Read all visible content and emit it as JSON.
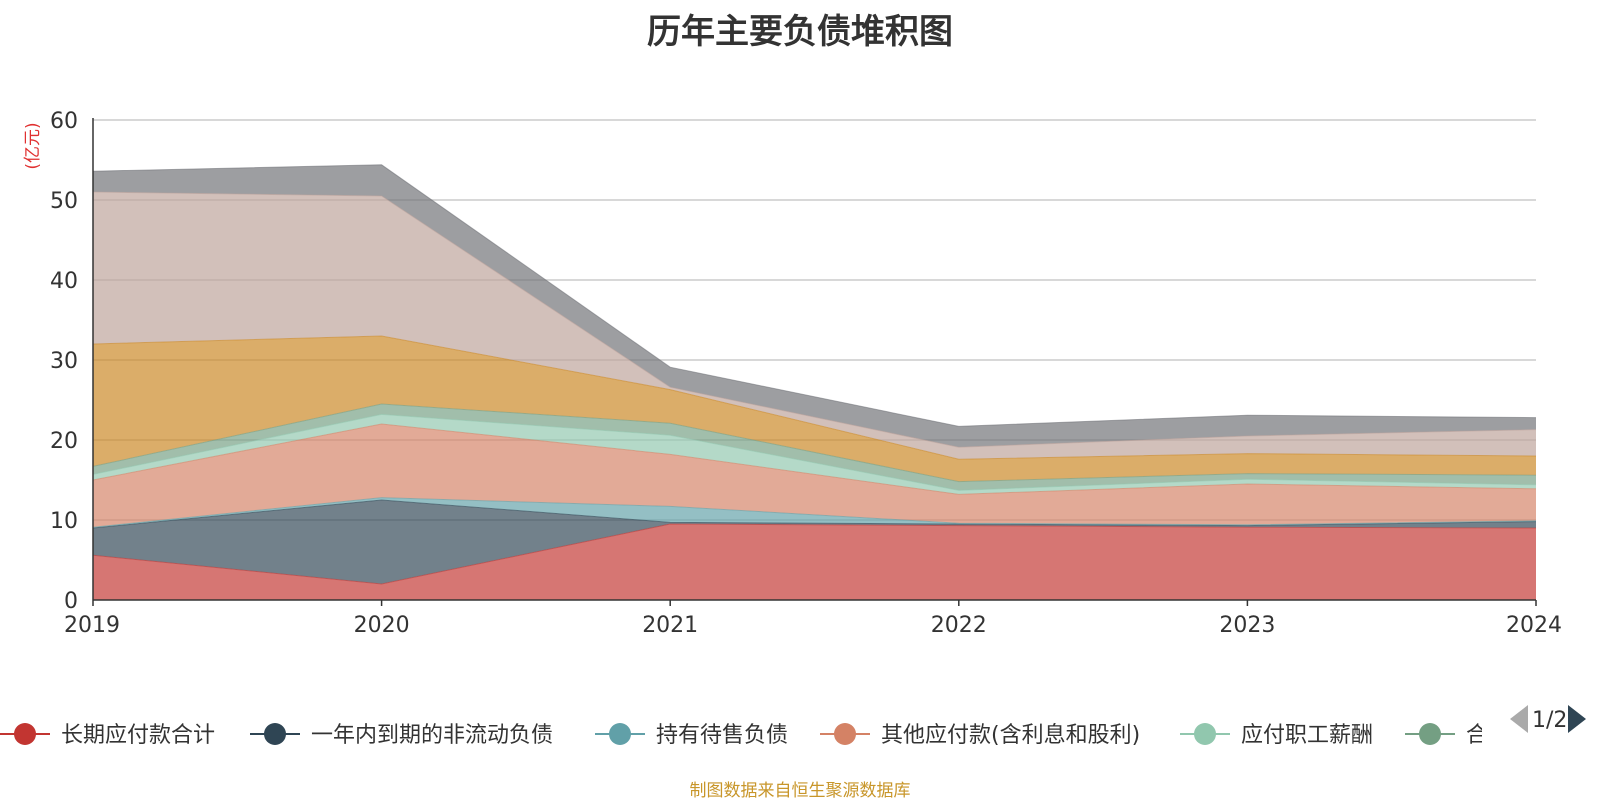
{
  "chart_data": {
    "type": "area",
    "stacked": true,
    "title": "历年主要负债堆积图",
    "y_unit": "(亿元)",
    "xlabel": "",
    "ylabel": "",
    "x": [
      "2019",
      "2020",
      "2021",
      "2022",
      "2023",
      "2024"
    ],
    "ylim": [
      0,
      60
    ],
    "yticks": [
      "0",
      "10",
      "20",
      "30",
      "40",
      "50",
      "60"
    ],
    "grid": true,
    "legend": {
      "position": "bottom",
      "page": "1/2"
    },
    "series": [
      {
        "name": "长期应付款合计",
        "color": "#c23531",
        "values": [
          5.6,
          2.0,
          9.5,
          9.3,
          9.1,
          9.0
        ],
        "legend_visible": true
      },
      {
        "name": "一年内到期的非流动负债",
        "color": "#2f4554",
        "values": [
          3.4,
          10.5,
          0.2,
          0.2,
          0.2,
          0.8
        ],
        "legend_visible": true
      },
      {
        "name": "持有待售负债",
        "color": "#61a0a8",
        "values": [
          0.1,
          0.3,
          2.0,
          0.1,
          0.1,
          0.1
        ],
        "legend_visible": true
      },
      {
        "name": "其他应付款(含利息和股利)",
        "color": "#d48265",
        "values": [
          5.9,
          9.2,
          6.5,
          3.6,
          5.1,
          4.0
        ],
        "legend_visible": true
      },
      {
        "name": "应付职工薪酬",
        "color": "#91c7ae",
        "values": [
          0.7,
          1.2,
          2.4,
          0.5,
          0.6,
          0.5
        ],
        "legend_visible": true
      },
      {
        "name": "合",
        "color": "#749f83",
        "values": [
          1.0,
          1.3,
          1.5,
          1.1,
          0.7,
          1.2
        ],
        "legend_visible": true
      },
      {
        "name": "",
        "color": "#ca8622",
        "values": [
          15.3,
          8.5,
          4.2,
          2.8,
          2.5,
          2.4
        ],
        "legend_visible": false
      },
      {
        "name": "",
        "color": "#bda29a",
        "values": [
          19.0,
          17.5,
          0.3,
          1.5,
          2.2,
          3.3
        ],
        "legend_visible": false
      },
      {
        "name": "",
        "color": "#6e7074",
        "values": [
          2.6,
          3.9,
          2.5,
          2.6,
          2.6,
          1.5
        ],
        "legend_visible": false
      }
    ]
  },
  "legend_truncated_label": "合",
  "source_note": "制图数据来自恒生聚源数据库"
}
